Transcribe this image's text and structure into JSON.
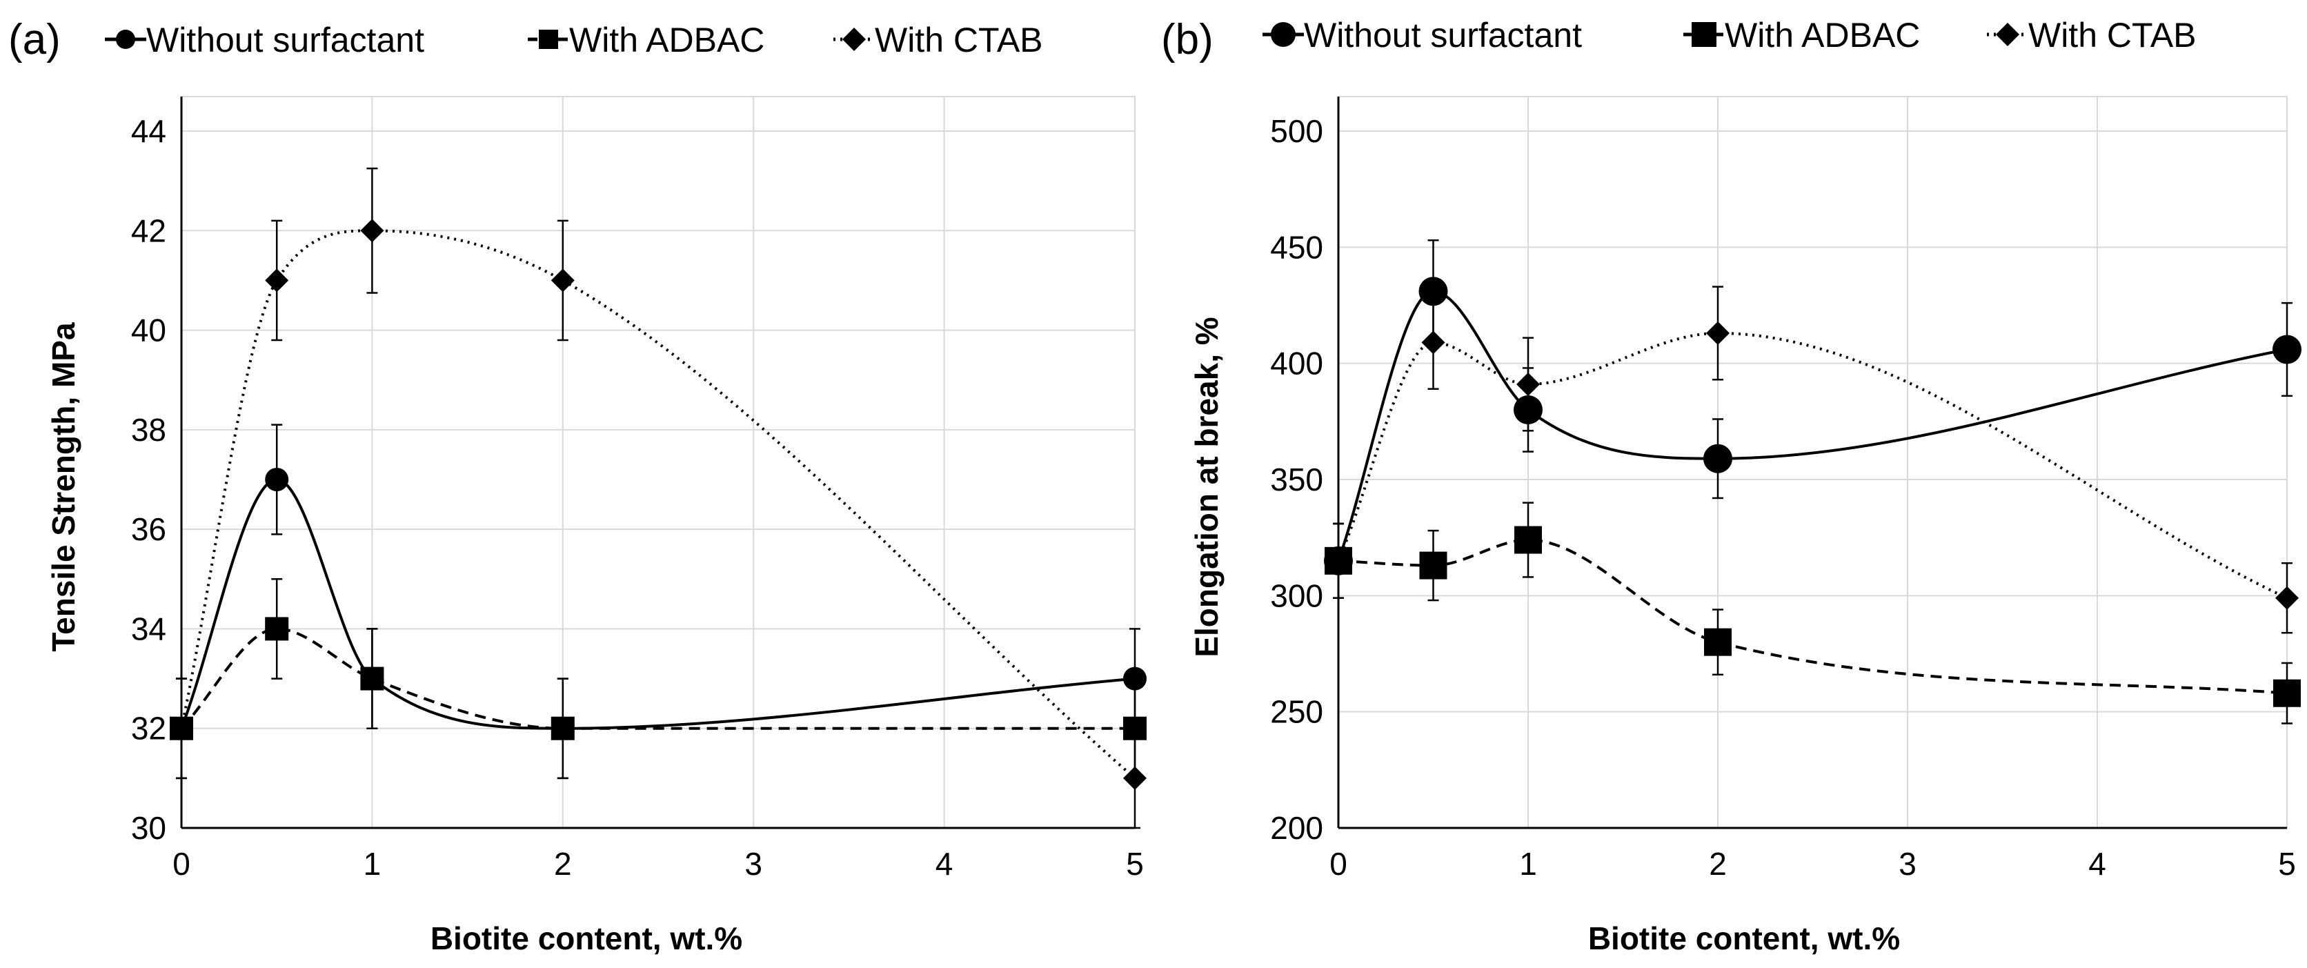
{
  "chart_data": [
    {
      "type": "line",
      "panel_label": "(a)",
      "xlabel": "Biotite content, wt.%",
      "ylabel": "Tensile Strength, MPa",
      "xlim": [
        0,
        5
      ],
      "ylim": [
        30,
        44
      ],
      "xticks": [
        "0",
        "1",
        "2",
        "3",
        "4",
        "5"
      ],
      "yticks": [
        "30",
        "32",
        "34",
        "36",
        "38",
        "40",
        "42",
        "44"
      ],
      "x": [
        0,
        0.5,
        1,
        2,
        5
      ],
      "series": [
        {
          "name": "Without surfactant",
          "marker": "circle",
          "line": "solid",
          "values": [
            32,
            37,
            33,
            32,
            33
          ],
          "errors": [
            1.0,
            1.1,
            1.0,
            1.0,
            1.0
          ]
        },
        {
          "name": "With ADBAC",
          "marker": "square",
          "line": "dashed",
          "values": [
            32,
            34,
            33,
            32,
            32
          ],
          "errors": [
            1.0,
            1.0,
            1.0,
            1.0,
            1.0
          ]
        },
        {
          "name": "With CTAB",
          "marker": "diamond",
          "line": "dotted",
          "values": [
            32,
            41,
            42,
            41,
            31
          ],
          "errors": [
            1.0,
            1.2,
            1.25,
            1.2,
            1.0
          ]
        }
      ],
      "grid": true,
      "legend_position": "top"
    },
    {
      "type": "line",
      "panel_label": "(b)",
      "xlabel": "Biotite content, wt.%",
      "ylabel": "Elongation at break, %",
      "xlim": [
        0,
        5
      ],
      "ylim": [
        200,
        500
      ],
      "xticks": [
        "0",
        "1",
        "2",
        "3",
        "4",
        "5"
      ],
      "yticks": [
        "200",
        "250",
        "300",
        "350",
        "400",
        "450",
        "500"
      ],
      "x": [
        0,
        0.5,
        1,
        2,
        5
      ],
      "series": [
        {
          "name": "Without surfactant",
          "marker": "circle",
          "line": "solid",
          "values": [
            315,
            431,
            380,
            359,
            406
          ],
          "errors": [
            16,
            22,
            18,
            17,
            20
          ]
        },
        {
          "name": "With ADBAC",
          "marker": "square",
          "line": "dashed",
          "values": [
            315,
            313,
            324,
            280,
            258
          ],
          "errors": [
            16,
            15,
            16,
            14,
            13
          ]
        },
        {
          "name": "With CTAB",
          "marker": "diamond",
          "line": "dotted",
          "values": [
            315,
            409,
            391,
            413,
            299
          ],
          "errors": [
            16,
            20,
            20,
            20,
            15
          ]
        }
      ],
      "grid": true,
      "legend_position": "top"
    }
  ]
}
